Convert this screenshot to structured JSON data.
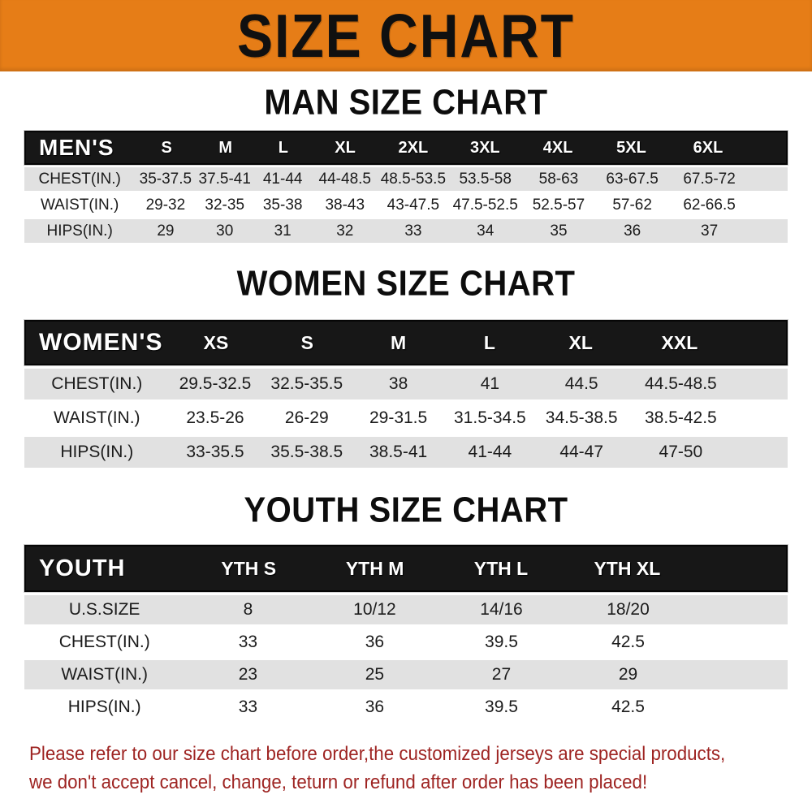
{
  "banner": {
    "title": "SIZE CHART"
  },
  "colors": {
    "banner_bg": "#E67D17",
    "header_bg": "#171717",
    "row_alt_bg": "#E1E1E1",
    "disclaimer_red": "#9E2422"
  },
  "sections": [
    {
      "title": "MAN SIZE CHART",
      "table_label": "MEN'S",
      "columns": [
        "S",
        "M",
        "L",
        "XL",
        "2XL",
        "3XL",
        "4XL",
        "5XL",
        "6XL"
      ],
      "rows": [
        {
          "label": "CHEST(IN.)",
          "values": [
            "35-37.5",
            "37.5-41",
            "41-44",
            "44-48.5",
            "48.5-53.5",
            "53.5-58",
            "58-63",
            "63-67.5",
            "67.5-72"
          ]
        },
        {
          "label": "WAIST(IN.)",
          "values": [
            "29-32",
            "32-35",
            "35-38",
            "38-43",
            "43-47.5",
            "47.5-52.5",
            "52.5-57",
            "57-62",
            "62-66.5"
          ]
        },
        {
          "label": "HIPS(IN.)",
          "values": [
            "29",
            "30",
            "31",
            "32",
            "33",
            "34",
            "35",
            "36",
            "37"
          ]
        }
      ]
    },
    {
      "title": "WOMEN SIZE CHART",
      "table_label": "WOMEN'S",
      "columns": [
        "XS",
        "S",
        "M",
        "L",
        "XL",
        "XXL"
      ],
      "rows": [
        {
          "label": "CHEST(IN.)",
          "values": [
            "29.5-32.5",
            "32.5-35.5",
            "38",
            "41",
            "44.5",
            "44.5-48.5"
          ]
        },
        {
          "label": "WAIST(IN.)",
          "values": [
            "23.5-26",
            "26-29",
            "29-31.5",
            "31.5-34.5",
            "34.5-38.5",
            "38.5-42.5"
          ]
        },
        {
          "label": "HIPS(IN.)",
          "values": [
            "33-35.5",
            "35.5-38.5",
            "38.5-41",
            "41-44",
            "44-47",
            "47-50"
          ]
        }
      ]
    },
    {
      "title": "YOUTH SIZE CHART",
      "table_label": "YOUTH",
      "columns": [
        "YTH S",
        "YTH M",
        "YTH L",
        "YTH XL"
      ],
      "rows": [
        {
          "label": "U.S.SIZE",
          "values": [
            "8",
            "10/12",
            "14/16",
            "18/20"
          ]
        },
        {
          "label": "CHEST(IN.)",
          "values": [
            "33",
            "36",
            "39.5",
            "42.5"
          ]
        },
        {
          "label": "WAIST(IN.)",
          "values": [
            "23",
            "25",
            "27",
            "29"
          ]
        },
        {
          "label": "HIPS(IN.)",
          "values": [
            "33",
            "36",
            "39.5",
            "42.5"
          ]
        }
      ]
    }
  ],
  "disclaimer": {
    "line1": "Please refer to our size chart before order,the customized jerseys are special products,",
    "line2": "we don't accept cancel, change, teturn or refund after order has been placed!"
  }
}
